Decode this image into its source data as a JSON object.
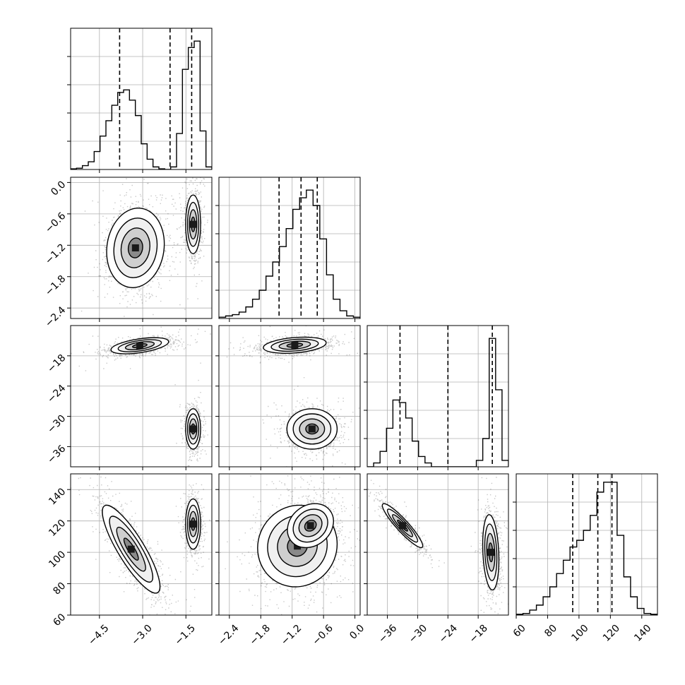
{
  "chart_data": {
    "type": "corner",
    "grid": true,
    "parameters": [
      {
        "range": [
          -5.5,
          -0.6
        ],
        "ticks": [
          -4.5,
          -3.0,
          -1.5
        ],
        "tick_labels": [
          "−4.5",
          "−3.0",
          "−1.5"
        ],
        "quantiles": [
          -3.8,
          -2.05,
          -1.3
        ]
      },
      {
        "range": [
          -2.6,
          0.1
        ],
        "ticks": [
          -2.4,
          -1.8,
          -1.2,
          -0.6,
          0.0
        ],
        "tick_labels": [
          "−2.4",
          "−1.8",
          "−1.2",
          "−0.6",
          "0.0"
        ],
        "quantiles": [
          -1.45,
          -1.03,
          -0.72
        ]
      },
      {
        "range": [
          -40,
          -12
        ],
        "ticks": [
          -36,
          -30,
          -24,
          -18
        ],
        "tick_labels": [
          "−36",
          "−30",
          "−24",
          "−18"
        ],
        "quantiles": [
          -33.5,
          -24.0,
          -15.2
        ]
      },
      {
        "range": [
          60,
          150
        ],
        "ticks": [
          60,
          80,
          100,
          120,
          140
        ],
        "tick_labels": [
          "60",
          "80",
          "100",
          "120",
          "140"
        ],
        "quantiles": [
          96,
          112,
          121
        ]
      }
    ],
    "histograms": [
      {
        "values": [
          0.005,
          0.01,
          0.03,
          0.06,
          0.14,
          0.26,
          0.38,
          0.5,
          0.6,
          0.62,
          0.54,
          0.42,
          0.2,
          0.08,
          0.02,
          0.005,
          0.0,
          0.02,
          0.28,
          0.78,
          0.95,
          1.0,
          0.3,
          0.02
        ],
        "ymax": 1.1
      },
      {
        "values": [
          0.01,
          0.02,
          0.03,
          0.05,
          0.09,
          0.15,
          0.22,
          0.33,
          0.44,
          0.56,
          0.7,
          0.85,
          0.94,
          1.0,
          0.88,
          0.62,
          0.34,
          0.15,
          0.06,
          0.02,
          0.01
        ],
        "ymax": 1.1
      },
      {
        "values": [
          0.0,
          0.03,
          0.12,
          0.3,
          0.52,
          0.5,
          0.38,
          0.2,
          0.08,
          0.03,
          0.0,
          0.0,
          0.0,
          0.0,
          0.0,
          0.0,
          0.0,
          0.05,
          0.22,
          1.0,
          0.6,
          0.05
        ],
        "ymax": 1.1
      },
      {
        "values": [
          0.005,
          0.01,
          0.03,
          0.06,
          0.11,
          0.17,
          0.25,
          0.33,
          0.41,
          0.45,
          0.51,
          0.6,
          0.74,
          0.8,
          0.8,
          0.48,
          0.23,
          0.11,
          0.04,
          0.01,
          0.005
        ],
        "ymax": 0.85
      }
    ],
    "pairs": [
      {
        "row": 1,
        "col": 0,
        "modes": [
          {
            "mean": [
              -3.25,
              -1.25
            ],
            "sd": [
              0.5,
              0.38
            ],
            "rho": 0.1,
            "weight": 0.55,
            "n": 1500
          },
          {
            "mean": [
              -1.25,
              -0.8
            ],
            "sd": [
              0.13,
              0.28
            ],
            "rho": 0.0,
            "weight": 0.45,
            "n": 1100
          }
        ]
      },
      {
        "row": 2,
        "col": 0,
        "modes": [
          {
            "mean": [
              -3.1,
              -16.0
            ],
            "sd": [
              0.5,
              0.8
            ],
            "rho": 0.5,
            "weight": 0.55,
            "n": 1300
          },
          {
            "mean": [
              -1.25,
              -32.5
            ],
            "sd": [
              0.13,
              2.0
            ],
            "rho": 0.0,
            "weight": 0.45,
            "n": 1100
          }
        ]
      },
      {
        "row": 2,
        "col": 1,
        "modes": [
          {
            "mean": [
              -1.15,
              -15.9
            ],
            "sd": [
              0.3,
              0.8
            ],
            "rho": 0.3,
            "weight": 0.55,
            "n": 1400
          },
          {
            "mean": [
              -0.82,
              -32.5
            ],
            "sd": [
              0.24,
              2.0
            ],
            "rho": 0.0,
            "weight": 0.45,
            "n": 1100
          }
        ]
      },
      {
        "row": 3,
        "col": 0,
        "modes": [
          {
            "mean": [
              -3.4,
              102.0
            ],
            "sd": [
              0.5,
              14.0
            ],
            "rho": -0.85,
            "weight": 0.55,
            "n": 1500
          },
          {
            "mean": [
              -1.25,
              118.0
            ],
            "sd": [
              0.13,
              8.0
            ],
            "rho": 0.0,
            "weight": 0.45,
            "n": 1100
          }
        ]
      },
      {
        "row": 3,
        "col": 1,
        "modes": [
          {
            "mean": [
              -1.1,
              104.0
            ],
            "sd": [
              0.38,
              13.0
            ],
            "rho": 0.05,
            "weight": 0.55,
            "n": 1700
          },
          {
            "mean": [
              -0.85,
              117.0
            ],
            "sd": [
              0.22,
              7.0
            ],
            "rho": 0.2,
            "weight": 0.45,
            "n": 1100
          }
        ]
      },
      {
        "row": 3,
        "col": 2,
        "modes": [
          {
            "mean": [
              -33.0,
              117.0
            ],
            "sd": [
              2.0,
              7.0
            ],
            "rho": -0.92,
            "weight": 0.45,
            "n": 1100
          },
          {
            "mean": [
              -15.5,
              100.0
            ],
            "sd": [
              0.8,
              12.0
            ],
            "rho": -0.2,
            "weight": 0.55,
            "n": 1300
          }
        ]
      }
    ]
  }
}
